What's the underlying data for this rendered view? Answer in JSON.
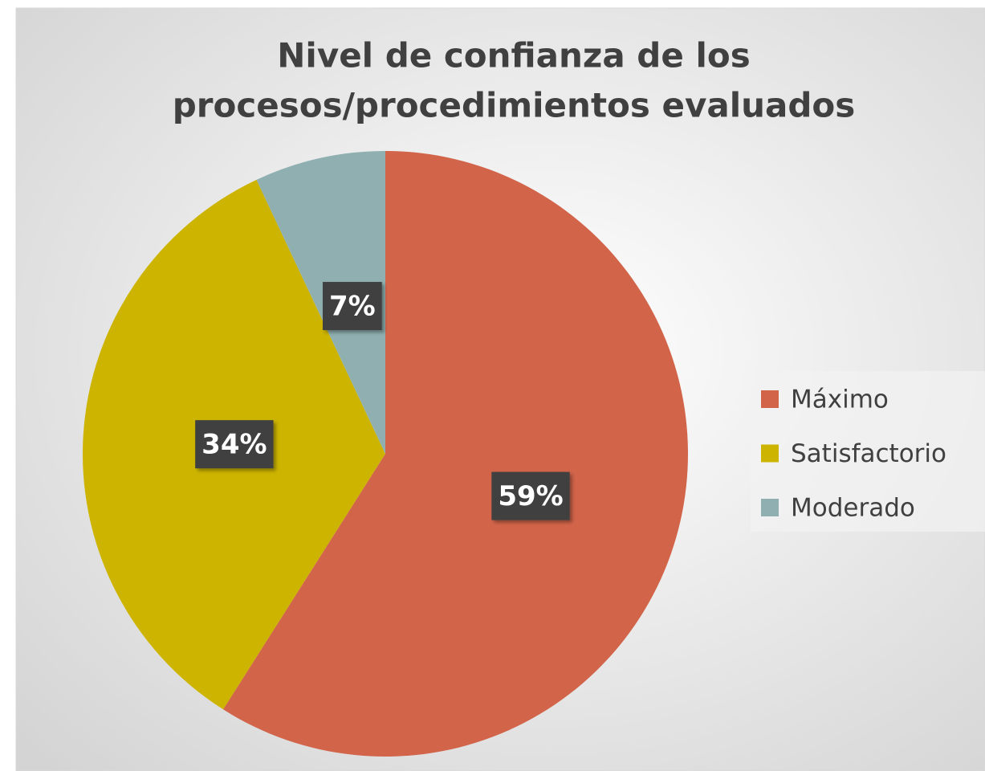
{
  "chart_data": {
    "type": "pie",
    "title": [
      "Nivel de confianza de los",
      "procesos/procedimientos evaluados"
    ],
    "categories": [
      "Máximo",
      "Satisfactorio",
      "Moderado"
    ],
    "values": [
      59,
      34,
      7
    ],
    "value_labels": [
      "59%",
      "34%",
      "7%"
    ],
    "colors": [
      "#d2644a",
      "#cdb400",
      "#8fafb0"
    ],
    "legend": "right"
  }
}
